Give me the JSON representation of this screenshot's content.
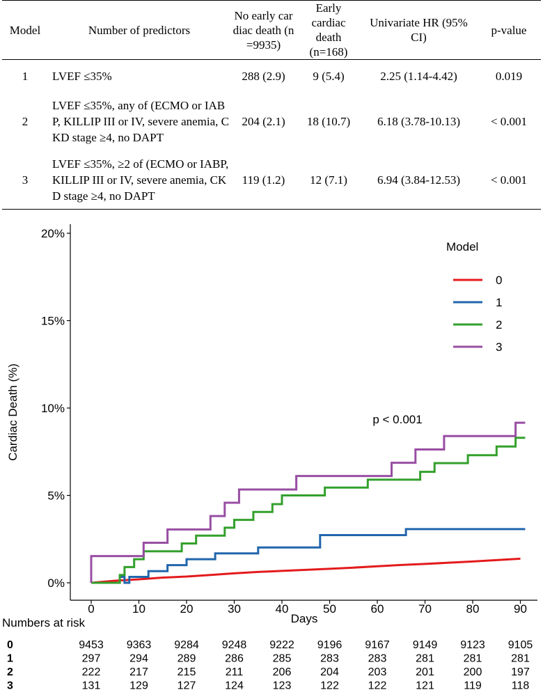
{
  "table": {
    "headers": {
      "model": "Model",
      "predictors": "Number of predictors",
      "no_early": "No early cardiac death (n=9935)",
      "early": "Early cardiac death (n=168)",
      "hr": "Univariate HR (95% CI)",
      "p": "p-value"
    },
    "rows": [
      {
        "model": "1",
        "predictors": "LVEF ≤35%",
        "no_early": "288 (2.9)",
        "early": "9 (5.4)",
        "hr": "2.25 (1.14-4.42)",
        "p": "0.019"
      },
      {
        "model": "2",
        "predictors": "LVEF ≤35%, any of (ECMO or IABP, KILLIP III or IV, severe anemia, CKD stage ≥4, no DAPT",
        "no_early": "204 (2.1)",
        "early": "18 (10.7)",
        "hr": "6.18 (3.78-10.13)",
        "p": "< 0.001"
      },
      {
        "model": "3",
        "predictors": "LVEF ≤35%, ≥2 of (ECMO or IABP, KILLIP III or IV, severe anemia, CKD stage ≥4, no DAPT",
        "no_early": "119 (1.2)",
        "early": "12 (7.1)",
        "hr": "6.94 (3.84-12.53)",
        "p": "< 0.001"
      }
    ]
  },
  "chart_data": {
    "type": "line",
    "ylabel": "Cardiac Death (%)",
    "xlabel": "Days",
    "xlim": [
      0,
      90
    ],
    "ylim": [
      0,
      20
    ],
    "x_ticks": [
      0,
      10,
      20,
      30,
      40,
      50,
      60,
      70,
      80,
      90
    ],
    "y_ticks": [
      0,
      5,
      10,
      15,
      20
    ],
    "y_tick_labels": [
      "0%",
      "5%",
      "10%",
      "15%",
      "20%"
    ],
    "annotation": "p < 0.001",
    "legend_title": "Model",
    "series": [
      {
        "name": "0",
        "color": "#e31a1c",
        "points": [
          [
            0,
            0
          ],
          [
            5,
            0.12
          ],
          [
            10,
            0.2
          ],
          [
            15,
            0.3
          ],
          [
            20,
            0.36
          ],
          [
            25,
            0.45
          ],
          [
            30,
            0.54
          ],
          [
            35,
            0.62
          ],
          [
            40,
            0.68
          ],
          [
            45,
            0.74
          ],
          [
            50,
            0.8
          ],
          [
            55,
            0.87
          ],
          [
            60,
            0.95
          ],
          [
            65,
            1.02
          ],
          [
            70,
            1.08
          ],
          [
            75,
            1.15
          ],
          [
            80,
            1.22
          ],
          [
            85,
            1.3
          ],
          [
            90,
            1.38
          ]
        ]
      },
      {
        "name": "1",
        "color": "#2166ac",
        "points": [
          [
            0,
            0
          ],
          [
            6,
            0
          ],
          [
            6,
            0.34
          ],
          [
            7,
            0.34
          ],
          [
            7,
            0
          ],
          [
            8,
            0
          ],
          [
            8,
            0.34
          ],
          [
            12,
            0.34
          ],
          [
            12,
            0.67
          ],
          [
            16,
            0.67
          ],
          [
            16,
            1.01
          ],
          [
            20,
            1.01
          ],
          [
            20,
            1.35
          ],
          [
            26,
            1.35
          ],
          [
            26,
            1.68
          ],
          [
            35,
            1.68
          ],
          [
            35,
            2.02
          ],
          [
            48,
            2.02
          ],
          [
            48,
            2.73
          ],
          [
            66,
            2.73
          ],
          [
            66,
            3.07
          ],
          [
            91,
            3.07
          ]
        ]
      },
      {
        "name": "2",
        "color": "#33a02c",
        "points": [
          [
            0,
            0
          ],
          [
            6,
            0
          ],
          [
            6,
            0.45
          ],
          [
            7,
            0.45
          ],
          [
            7,
            0.9
          ],
          [
            9,
            0.9
          ],
          [
            9,
            1.35
          ],
          [
            11,
            1.35
          ],
          [
            11,
            1.8
          ],
          [
            19,
            1.8
          ],
          [
            19,
            2.25
          ],
          [
            22,
            2.25
          ],
          [
            22,
            2.7
          ],
          [
            28,
            2.7
          ],
          [
            28,
            3.15
          ],
          [
            30,
            3.15
          ],
          [
            30,
            3.6
          ],
          [
            34,
            3.6
          ],
          [
            34,
            4.05
          ],
          [
            38,
            4.05
          ],
          [
            38,
            4.5
          ],
          [
            40,
            4.5
          ],
          [
            40,
            5.0
          ],
          [
            49,
            5.0
          ],
          [
            49,
            5.45
          ],
          [
            58,
            5.45
          ],
          [
            58,
            5.9
          ],
          [
            69,
            5.9
          ],
          [
            69,
            6.35
          ],
          [
            72,
            6.35
          ],
          [
            72,
            6.85
          ],
          [
            79,
            6.85
          ],
          [
            79,
            7.3
          ],
          [
            85,
            7.3
          ],
          [
            85,
            7.8
          ],
          [
            89,
            7.8
          ],
          [
            89,
            8.3
          ],
          [
            91,
            8.3
          ]
        ]
      },
      {
        "name": "3",
        "color": "#984ea3",
        "points": [
          [
            0,
            0
          ],
          [
            0,
            1.53
          ],
          [
            11,
            1.53
          ],
          [
            11,
            2.29
          ],
          [
            16,
            2.29
          ],
          [
            16,
            3.05
          ],
          [
            25,
            3.05
          ],
          [
            25,
            3.82
          ],
          [
            28,
            3.82
          ],
          [
            28,
            4.58
          ],
          [
            31,
            4.58
          ],
          [
            31,
            5.34
          ],
          [
            43,
            5.34
          ],
          [
            43,
            6.11
          ],
          [
            63,
            6.11
          ],
          [
            63,
            6.87
          ],
          [
            68,
            6.87
          ],
          [
            68,
            7.63
          ],
          [
            74,
            7.63
          ],
          [
            74,
            8.4
          ],
          [
            89,
            8.4
          ],
          [
            89,
            9.16
          ],
          [
            91,
            9.16
          ]
        ]
      }
    ],
    "at_risk": {
      "title": "Numbers at risk",
      "rows": [
        {
          "label": "0",
          "values": [
            "9453",
            "9363",
            "9284",
            "9248",
            "9222",
            "9196",
            "9167",
            "9149",
            "9123",
            "9105"
          ]
        },
        {
          "label": "1",
          "values": [
            "297",
            "294",
            "289",
            "286",
            "285",
            "283",
            "283",
            "281",
            "281",
            "281"
          ]
        },
        {
          "label": "2",
          "values": [
            "222",
            "217",
            "215",
            "211",
            "206",
            "204",
            "203",
            "201",
            "200",
            "197"
          ]
        },
        {
          "label": "3",
          "values": [
            "131",
            "129",
            "127",
            "124",
            "123",
            "122",
            "122",
            "121",
            "119",
            "118"
          ]
        }
      ]
    }
  }
}
